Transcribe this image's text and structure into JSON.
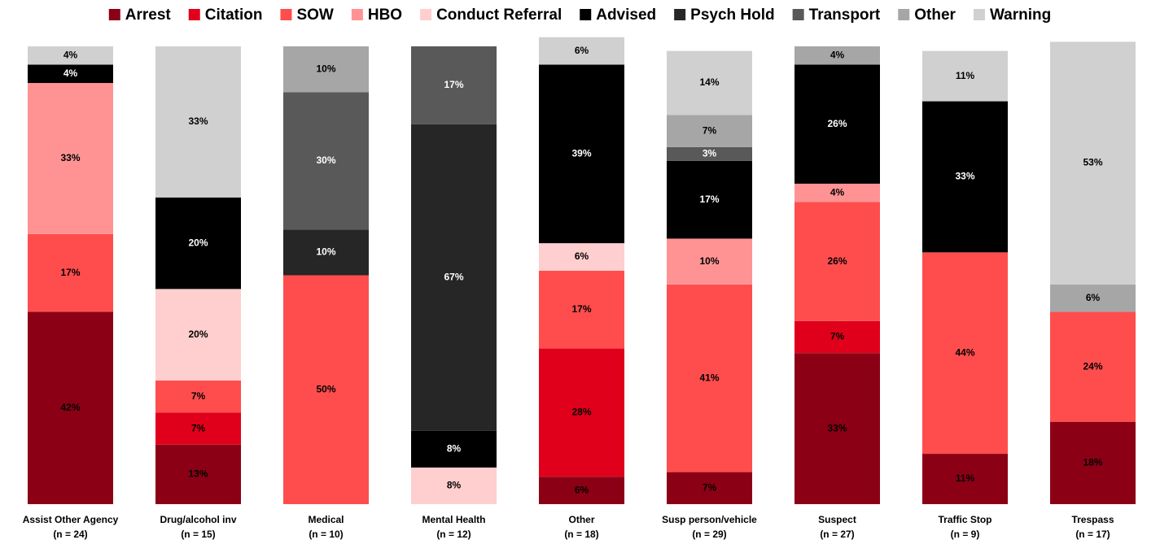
{
  "chart_data": {
    "type": "stacked_bar",
    "categories": [
      "Assist Other Agency",
      "Drug/alcohol inv",
      "Medical",
      "Mental Health",
      "Other",
      "Susp person/vehicle",
      "Suspect",
      "Traffic Stop",
      "Trespass"
    ],
    "category_counts": [
      "(n = 24)",
      "(n = 15)",
      "(n = 10)",
      "(n = 12)",
      "(n = 18)",
      "(n = 29)",
      "(n = 27)",
      "(n = 9)",
      "(n = 17)"
    ],
    "ylim": [
      0,
      100
    ],
    "legend": "top",
    "series": [
      {
        "name": "Arrest",
        "color": "#8b0015",
        "label_color": "#000000",
        "values": [
          42,
          13,
          0,
          0,
          6,
          7,
          33,
          11,
          18
        ],
        "value_labels": [
          "42%",
          "13%",
          null,
          null,
          "6%",
          "7%",
          "33%",
          "11%",
          "18%"
        ]
      },
      {
        "name": "Citation",
        "color": "#e0001b",
        "label_color": "#000000",
        "values": [
          0,
          7,
          0,
          0,
          28,
          0,
          7,
          0,
          0
        ],
        "value_labels": [
          null,
          "7%",
          null,
          null,
          "28%",
          null,
          "7%",
          null,
          null
        ]
      },
      {
        "name": "SOW",
        "color": "#ff4d4d",
        "label_color": "#000000",
        "values": [
          17,
          7,
          50,
          0,
          17,
          41,
          26,
          44,
          24
        ],
        "value_labels": [
          "17%",
          "7%",
          "50%",
          null,
          "17%",
          "41%",
          "26%",
          "44%",
          "24%"
        ]
      },
      {
        "name": "HBO",
        "color": "#ff9393",
        "label_color": "#000000",
        "values": [
          33,
          0,
          0,
          0,
          0,
          10,
          4,
          0,
          0
        ],
        "value_labels": [
          "33%",
          null,
          null,
          null,
          null,
          "10%",
          "4%",
          null,
          null
        ]
      },
      {
        "name": "Conduct Referral",
        "color": "#ffcece",
        "label_color": "#000000",
        "values": [
          0,
          20,
          0,
          8,
          6,
          0,
          0,
          0,
          0
        ],
        "value_labels": [
          null,
          "20%",
          null,
          "8%",
          "6%",
          null,
          null,
          null,
          null
        ]
      },
      {
        "name": "Advised",
        "color": "#000000",
        "label_color": "#ffffff",
        "values": [
          4,
          20,
          0,
          8,
          39,
          17,
          26,
          33,
          0
        ],
        "value_labels": [
          "4%",
          "20%",
          null,
          "8%",
          "39%",
          "17%",
          "26%",
          "33%",
          null
        ]
      },
      {
        "name": "Psych Hold",
        "color": "#262626",
        "label_color": "#ffffff",
        "values": [
          0,
          0,
          10,
          67,
          0,
          0,
          0,
          0,
          0
        ],
        "value_labels": [
          null,
          null,
          "10%",
          "67%",
          null,
          null,
          null,
          null,
          null
        ]
      },
      {
        "name": "Transport",
        "color": "#595959",
        "label_color": "#ffffff",
        "values": [
          0,
          0,
          30,
          17,
          0,
          3,
          0,
          0,
          0
        ],
        "value_labels": [
          null,
          null,
          "30%",
          "17%",
          null,
          "3%",
          null,
          null,
          null
        ]
      },
      {
        "name": "Other",
        "color": "#a6a6a6",
        "label_color": "#000000",
        "values": [
          0,
          0,
          10,
          0,
          0,
          7,
          4,
          0,
          6
        ],
        "value_labels": [
          null,
          null,
          "10%",
          null,
          null,
          "7%",
          "4%",
          null,
          "6%"
        ]
      },
      {
        "name": "Warning",
        "color": "#d0d0d0",
        "label_color": "#000000",
        "values": [
          4,
          33,
          0,
          0,
          6,
          14,
          0,
          11,
          53
        ],
        "value_labels": [
          "4%",
          "33%",
          null,
          null,
          "6%",
          "14%",
          null,
          "11%",
          "53%"
        ]
      }
    ]
  }
}
